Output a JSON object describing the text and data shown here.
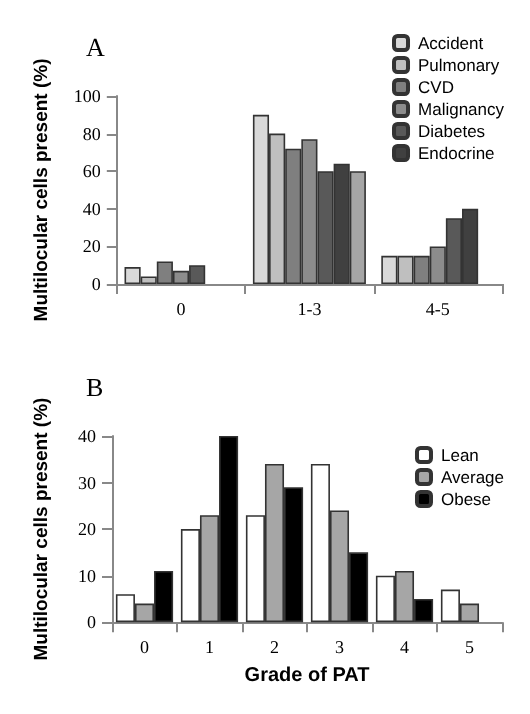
{
  "chart_data": [
    {
      "type": "bar",
      "title": "A",
      "ylabel": "Multilocular cells present (%)",
      "categories": [
        "0",
        "1-3",
        "4-5"
      ],
      "ylim": [
        0,
        100
      ],
      "yticks": [
        0,
        20,
        40,
        60,
        80,
        100
      ],
      "legend": "top right",
      "grid": false,
      "series": [
        {
          "name": "Accident",
          "color": "#d9d9d9",
          "values": [
            9,
            90,
            15
          ]
        },
        {
          "name": "Pulmonary",
          "color": "#bfbfbf",
          "values": [
            4,
            80,
            15
          ]
        },
        {
          "name": "CVD",
          "color": "#7f7f7f",
          "values": [
            12,
            72,
            15
          ]
        },
        {
          "name": "Malignancy",
          "color": "#8c8c8c",
          "values": [
            7,
            77,
            20
          ]
        },
        {
          "name": "Diabetes",
          "color": "#595959",
          "values": [
            10,
            60,
            35
          ]
        },
        {
          "name": "Endocrine",
          "color": "#404040",
          "values": [
            null,
            64,
            40
          ]
        },
        {
          "color": "#a6a6a6",
          "values": [
            null,
            60,
            null
          ]
        }
      ]
    },
    {
      "type": "bar",
      "title": "B",
      "xlabel": "Grade of PAT",
      "ylabel": "Multilocular cells present (%)",
      "categories": [
        "0",
        "1",
        "2",
        "3",
        "4",
        "5"
      ],
      "ylim": [
        0,
        40
      ],
      "yticks": [
        0,
        10,
        20,
        30,
        40
      ],
      "legend": "right",
      "grid": false,
      "series": [
        {
          "name": "Lean",
          "color": "#ffffff",
          "values": [
            6,
            20,
            23,
            34,
            10,
            7
          ]
        },
        {
          "name": "Average",
          "color": "#a6a6a6",
          "values": [
            4,
            23,
            34,
            24,
            11,
            4
          ]
        },
        {
          "name": "Obese",
          "color": "#000000",
          "values": [
            11,
            40,
            29,
            15,
            5,
            null
          ]
        }
      ]
    }
  ]
}
